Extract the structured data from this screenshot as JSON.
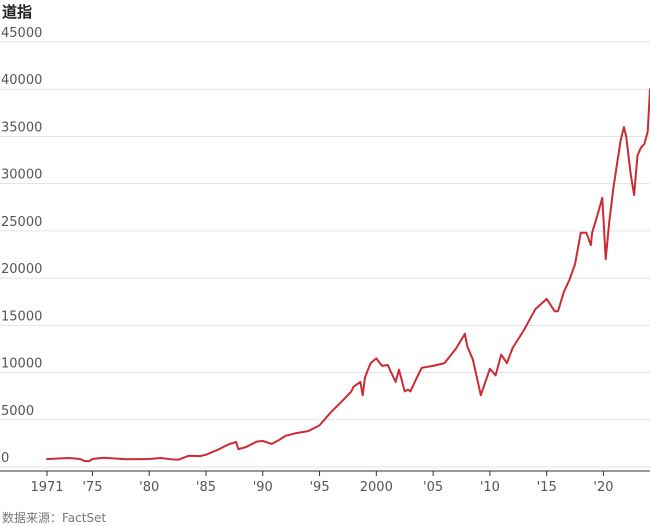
{
  "chart_data": {
    "type": "line",
    "title": "道指",
    "source": "数据来源：FactSet",
    "ylim": [
      0,
      45000
    ],
    "yticks": [
      0,
      5000,
      10000,
      15000,
      20000,
      25000,
      30000,
      35000,
      40000,
      45000
    ],
    "ytick_labels": [
      "0",
      "5000",
      "10000",
      "15000",
      "20000",
      "25000",
      "30000",
      "35000",
      "40000",
      "45000"
    ],
    "xlim": [
      1971,
      2024.1
    ],
    "xticks": [
      1971,
      1975,
      1980,
      1985,
      1990,
      1995,
      2000,
      2005,
      2010,
      2015,
      2020
    ],
    "xtick_labels": [
      "1971",
      "'75",
      "'80",
      "'85",
      "'90",
      "'95",
      "2000",
      "'05",
      "'10",
      "'15",
      "'20"
    ],
    "grid": true,
    "line_color": "#cc2b36",
    "grid_color": "#e3e3e3",
    "x": [
      1971.0,
      1972.0,
      1973.0,
      1973.9,
      1974.3,
      1974.7,
      1975.0,
      1976.0,
      1977.0,
      1978.0,
      1979.0,
      1980.0,
      1981.0,
      1982.0,
      1982.6,
      1983.5,
      1984.5,
      1985.0,
      1986.0,
      1987.0,
      1987.65,
      1987.85,
      1988.5,
      1989.5,
      1990.0,
      1990.8,
      1991.5,
      1992.0,
      1993.0,
      1994.0,
      1995.0,
      1996.0,
      1997.0,
      1997.8,
      1998.0,
      1998.6,
      1998.8,
      1999.0,
      1999.5,
      2000.0,
      2000.5,
      2001.0,
      2001.7,
      2002.0,
      2002.5,
      2002.8,
      2003.0,
      2003.5,
      2004.0,
      2005.0,
      2006.0,
      2007.0,
      2007.8,
      2008.0,
      2008.5,
      2009.0,
      2009.2,
      2010.0,
      2010.5,
      2011.0,
      2011.5,
      2012.0,
      2013.0,
      2014.0,
      2015.0,
      2015.7,
      2016.0,
      2016.5,
      2017.0,
      2017.5,
      2018.0,
      2018.5,
      2018.9,
      2019.0,
      2019.5,
      2019.9,
      2020.2,
      2020.5,
      2020.9,
      2021.0,
      2021.5,
      2021.8,
      2022.0,
      2022.4,
      2022.7,
      2023.0,
      2023.3,
      2023.6,
      2023.9,
      2024.1
    ],
    "values": [
      840,
      900,
      950,
      850,
      650,
      600,
      850,
      980,
      900,
      820,
      840,
      850,
      950,
      800,
      780,
      1200,
      1150,
      1300,
      1800,
      2400,
      2650,
      1900,
      2100,
      2700,
      2750,
      2450,
      2900,
      3300,
      3600,
      3800,
      4400,
      5800,
      7000,
      8000,
      8500,
      9000,
      7600,
      9500,
      11000,
      11500,
      10700,
      10800,
      9000,
      10300,
      8000,
      8200,
      8000,
      9300,
      10500,
      10700,
      11000,
      12500,
      14100,
      12800,
      11400,
      8700,
      7600,
      10400,
      9700,
      11900,
      11000,
      12600,
      14500,
      16700,
      17800,
      16500,
      16500,
      18500,
      19800,
      21500,
      24800,
      24800,
      23500,
      24800,
      26800,
      28500,
      22000,
      25800,
      29800,
      30500,
      34500,
      36000,
      35000,
      31000,
      28800,
      33000,
      33800,
      34200,
      35500,
      40000
    ]
  }
}
